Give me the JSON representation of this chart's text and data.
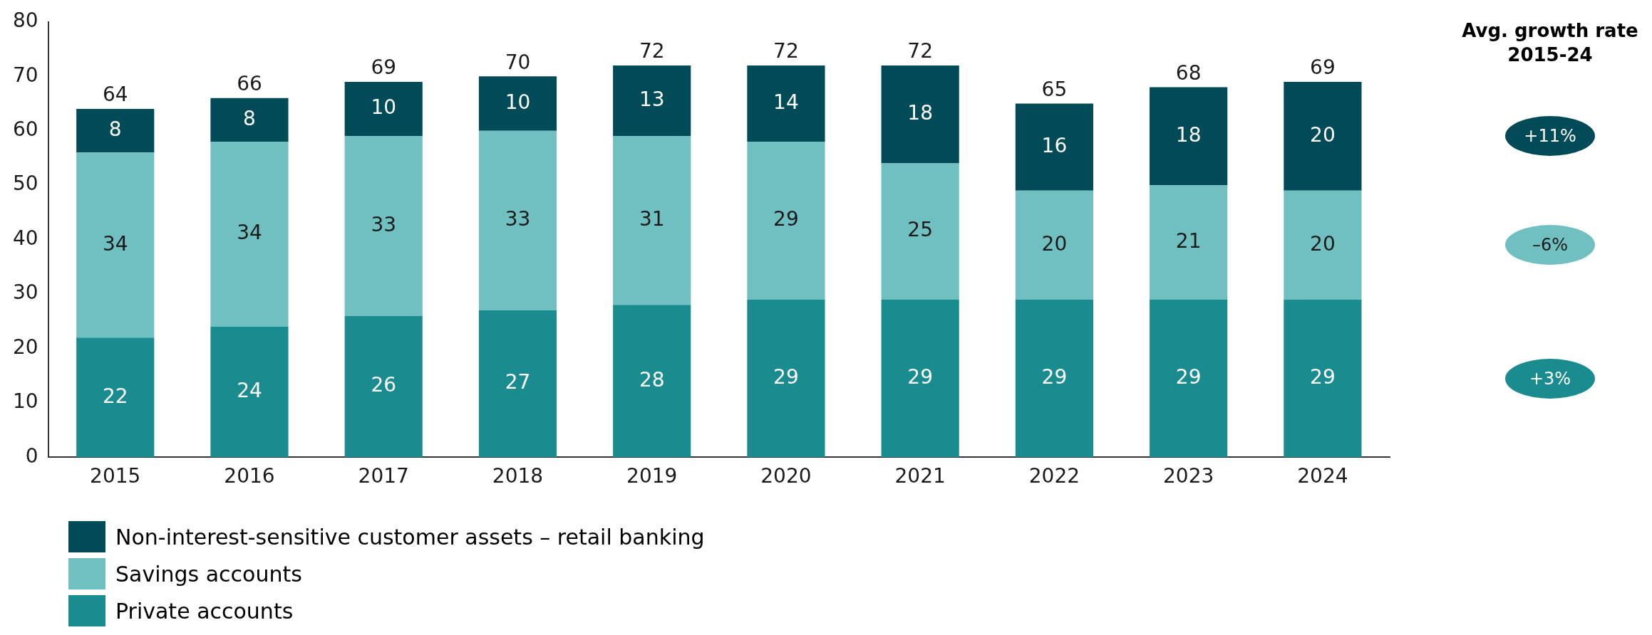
{
  "chart_data": {
    "type": "bar",
    "stacked": true,
    "categories": [
      "2015",
      "2016",
      "2017",
      "2018",
      "2019",
      "2020",
      "2021",
      "2022",
      "2023",
      "2024"
    ],
    "series": [
      {
        "name": "Private accounts",
        "color": "#1a8c90",
        "values": [
          22,
          24,
          26,
          27,
          28,
          29,
          29,
          29,
          29,
          29
        ]
      },
      {
        "name": "Savings accounts",
        "color": "#70bfc1",
        "values": [
          34,
          34,
          33,
          33,
          31,
          29,
          25,
          20,
          21,
          20
        ]
      },
      {
        "name": "Non-interest-sensitive customer assets – retail banking",
        "color": "#004b57",
        "values": [
          8,
          8,
          10,
          10,
          13,
          14,
          18,
          16,
          18,
          20
        ]
      }
    ],
    "totals": [
      "64",
      "66",
      "69",
      "70",
      "72",
      "72",
      "72",
      "65",
      "68",
      "69"
    ],
    "data_labels": true,
    "ylim": [
      0,
      80
    ],
    "yticks": [
      0,
      10,
      20,
      30,
      40,
      50,
      60,
      70,
      80
    ],
    "grid": false,
    "legend": "bottom",
    "annotations": [
      "Avg. growth rate 2015-24",
      "+3%",
      "–6%",
      "+11%"
    ]
  }
}
